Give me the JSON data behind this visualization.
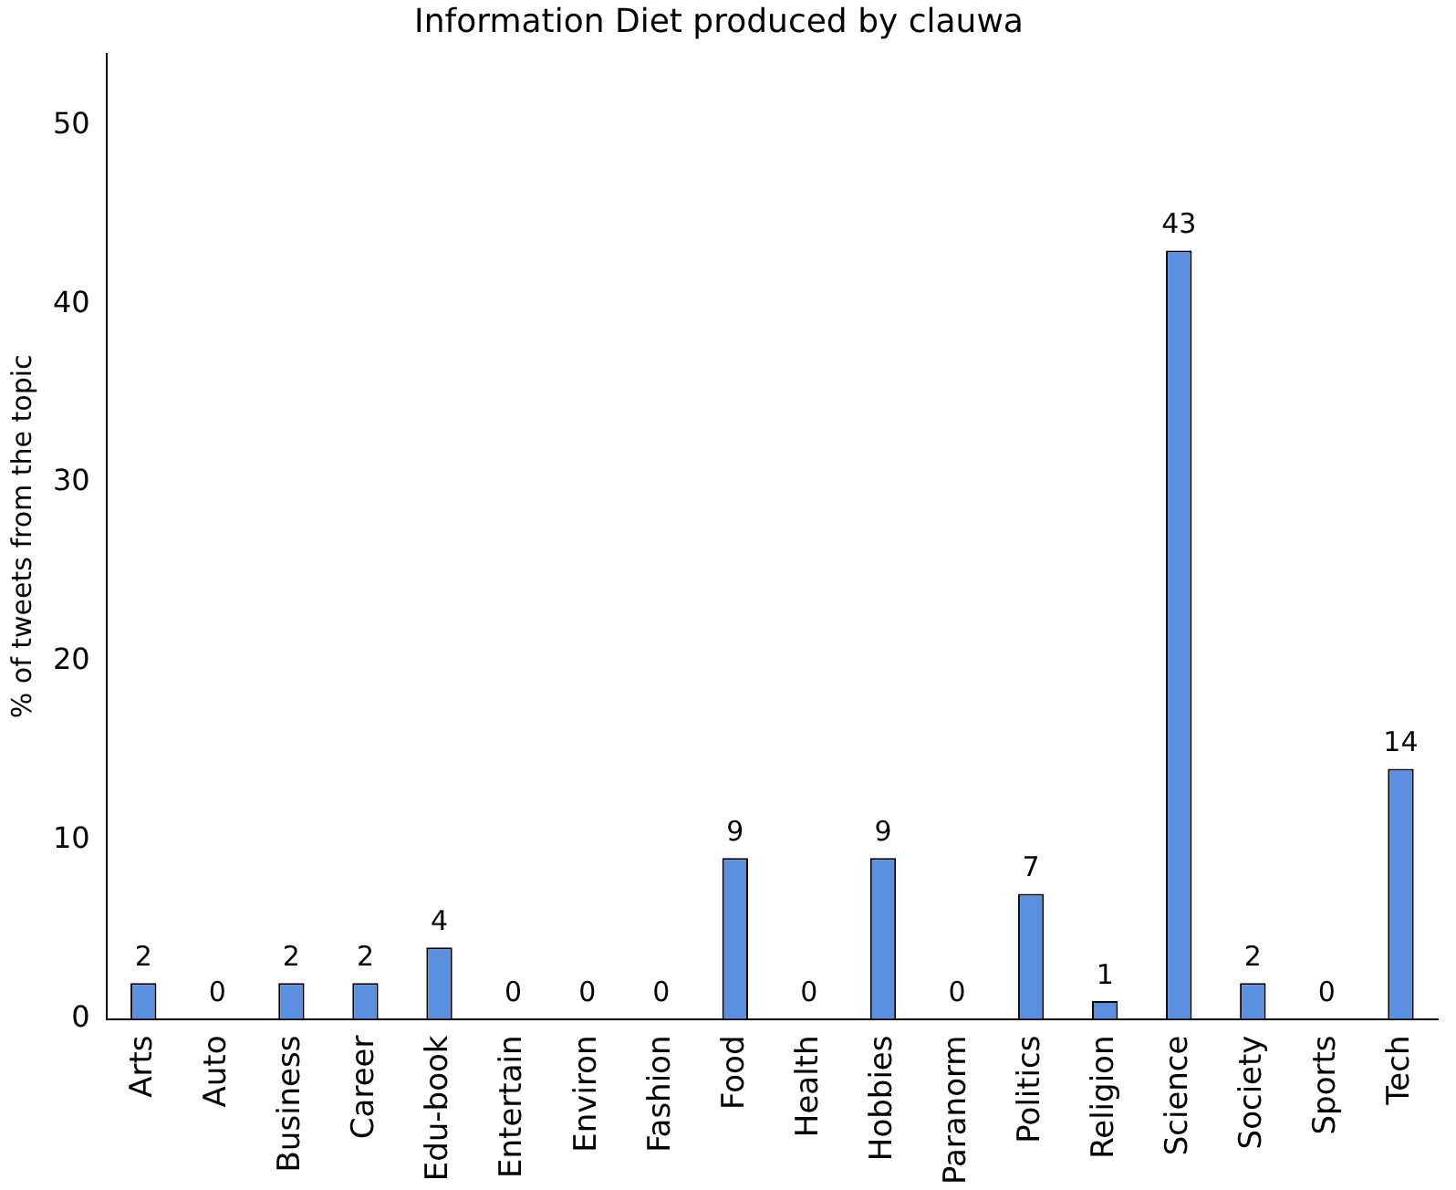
{
  "chart_data": {
    "type": "bar",
    "title": "Information Diet produced by clauwa",
    "ylabel": "% of tweets from the topic",
    "categories": [
      "Arts",
      "Auto",
      "Business",
      "Career",
      "Edu-book",
      "Entertain",
      "Environ",
      "Fashion",
      "Food",
      "Health",
      "Hobbies",
      "Paranorm",
      "Politics",
      "Religion",
      "Science",
      "Society",
      "Sports",
      "Tech"
    ],
    "values": [
      2,
      0,
      2,
      2,
      4,
      0,
      0,
      0,
      9,
      0,
      9,
      0,
      7,
      1,
      43,
      2,
      0,
      14
    ],
    "data_labels": true,
    "color": "#5b8fe0",
    "ylim": [
      0,
      54
    ],
    "yticks": [
      0,
      10,
      20,
      30,
      40,
      50
    ],
    "grid": false,
    "legend": false
  }
}
